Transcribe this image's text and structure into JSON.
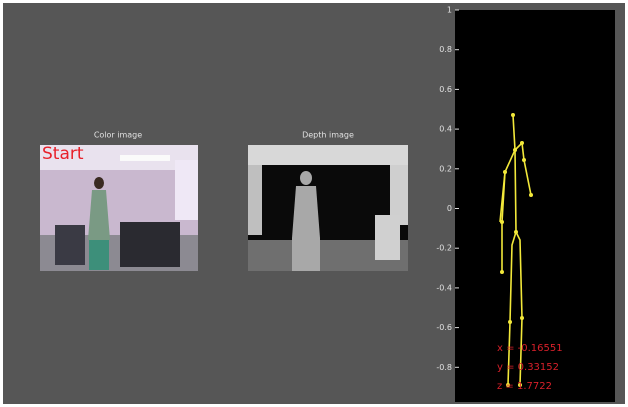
{
  "window": {
    "color_panel": {
      "title": "Color image",
      "status": "Start"
    },
    "depth_panel": {
      "title": "Depth image"
    },
    "skeleton_plot": {
      "ylim": [
        -1,
        1
      ],
      "yticks": [
        1,
        0.8,
        0.6,
        0.4,
        0.2,
        0,
        -0.2,
        -0.4,
        -0.6,
        -0.8
      ],
      "readout": [
        "x = -0.16551",
        "y = 0.33152",
        "z = 1.7722"
      ]
    }
  }
}
